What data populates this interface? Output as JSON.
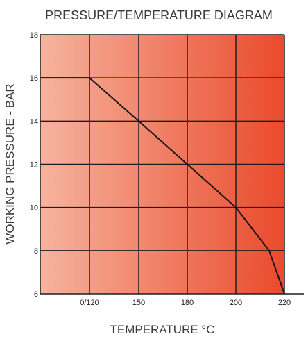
{
  "chart_data": {
    "type": "line",
    "title": "PRESSURE/TEMPERATURE DIAGRAM",
    "xlabel": "TEMPERATURE °C",
    "ylabel": "WORKING PRESSURE - BAR",
    "x_ticks": [
      "0/120",
      "150",
      "180",
      "200",
      "220"
    ],
    "y_ticks": [
      6,
      8,
      10,
      12,
      14,
      16,
      18
    ],
    "ylim": [
      6,
      18
    ],
    "grid": true,
    "legend": "none",
    "series": [
      {
        "points": [
          {
            "x": "0",
            "y": 16
          },
          {
            "x": "0/120",
            "y": 16
          },
          {
            "x": "150",
            "y": 14
          },
          {
            "x": "180",
            "y": 12
          },
          {
            "x": "200",
            "y": 10
          },
          {
            "x": "210",
            "y": 8
          },
          {
            "x": "220",
            "y": 6
          }
        ]
      }
    ],
    "colors": {
      "fill_light": "#f6b49e",
      "fill_dark": "#ea4a2c",
      "grid": "#1e1e1e",
      "line": "#151515",
      "text": "#3a3a3a"
    }
  }
}
